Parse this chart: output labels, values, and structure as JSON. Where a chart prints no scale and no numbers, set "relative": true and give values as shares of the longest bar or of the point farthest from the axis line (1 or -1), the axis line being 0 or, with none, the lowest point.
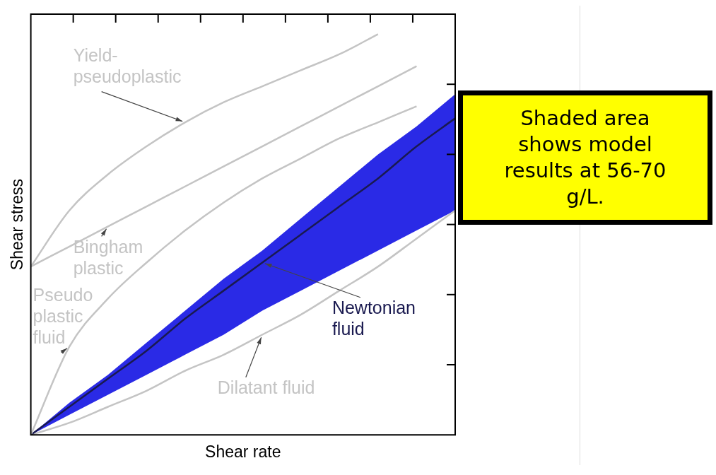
{
  "chart_data": {
    "type": "line",
    "relative": true,
    "xlabel": "Shear rate",
    "ylabel": "Shear stress",
    "categories": [
      null,
      null,
      null,
      null,
      null,
      null,
      null,
      null,
      null,
      null,
      null,
      null
    ],
    "legend": false,
    "grid": false,
    "marker": "none",
    "series": [
      {
        "name": "Yield-pseudoplastic",
        "color": "#c4c4c4",
        "values": [
          0.42,
          0.56,
          0.65,
          0.72,
          0.78,
          0.83,
          0.87,
          0.91,
          0.95,
          1.0,
          null,
          null
        ]
      },
      {
        "name": "Bingham plastic",
        "color": "#c4c4c4",
        "values": [
          0.42,
          0.47,
          0.52,
          0.57,
          0.62,
          0.67,
          0.72,
          0.77,
          0.82,
          0.87,
          0.92,
          null
        ]
      },
      {
        "name": "Pseudo plastic fluid",
        "color": "#c4c4c4",
        "values": [
          0,
          0.22,
          0.34,
          0.43,
          0.51,
          0.58,
          0.64,
          0.69,
          0.74,
          0.78,
          0.82,
          null
        ]
      },
      {
        "name": "Newtonian fluid",
        "color": "#1a1a50",
        "values": [
          0,
          0.07,
          0.14,
          0.21,
          0.29,
          0.36,
          0.43,
          0.5,
          0.57,
          0.64,
          0.72,
          0.79
        ],
        "lower": [
          0,
          0.05,
          0.1,
          0.15,
          0.2,
          0.25,
          0.31,
          0.36,
          0.41,
          0.46,
          0.51,
          0.56
        ],
        "upper": [
          0,
          0.08,
          0.15,
          0.23,
          0.31,
          0.39,
          0.46,
          0.54,
          0.62,
          0.7,
          0.77,
          0.85
        ]
      },
      {
        "name": "Dilatant fluid",
        "color": "#c4c4c4",
        "values": [
          0,
          0.03,
          0.07,
          0.11,
          0.16,
          0.2,
          0.25,
          0.3,
          0.36,
          0.42,
          0.49,
          0.56
        ]
      }
    ],
    "annotations": [
      "Shaded area shows model results at 56-70 g/L."
    ]
  }
}
